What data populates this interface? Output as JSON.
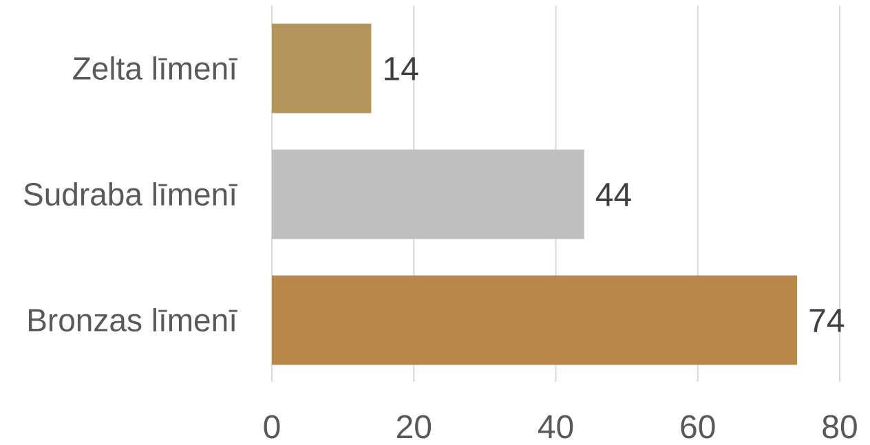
{
  "chart_data": {
    "type": "bar",
    "orientation": "horizontal",
    "title": "",
    "xlabel": "",
    "ylabel": "",
    "categories": [
      "Zelta līmenī",
      "Sudraba līmenī",
      "Bronzas līmenī"
    ],
    "values": [
      14,
      44,
      74
    ],
    "data_labels": [
      "14",
      "44",
      "74"
    ],
    "bar_colors": [
      "#b39659",
      "#bfbfbf",
      "#b9874a"
    ],
    "xlim": [
      0,
      80
    ],
    "x_ticks": [
      0,
      20,
      40,
      60,
      80
    ],
    "x_tick_labels": [
      "0",
      "20",
      "40",
      "60",
      "80"
    ],
    "grid": "vertical",
    "legend": "none"
  }
}
